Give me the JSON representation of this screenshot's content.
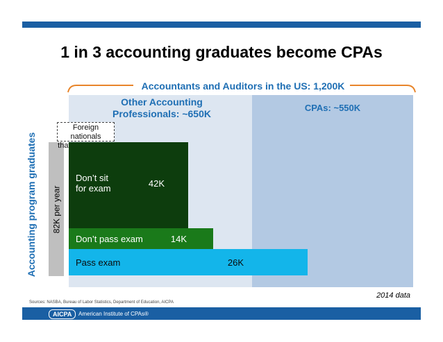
{
  "title": "1 in 3 accounting graduates become CPAs",
  "total_label": "Accountants and Auditors in the US: 1,200K",
  "other_label_line1": "Other Accounting",
  "other_label_line2": "Professionals: ~650K",
  "cpa_label": "CPAs: ~550K",
  "foreign_line1": "Foreign nationals",
  "foreign_line2": "that return home",
  "vertical_bar_label": "82K per year",
  "side_label": "Accounting program graduates",
  "year_note": "2014 data",
  "sources": "Sources: NASBA, Bureau of Labor Statistics, Department of Education, AICPA",
  "footer_logo": "AICPA",
  "footer_name": "American Institute of CPAs®",
  "colors": {
    "brand_blue": "#1a5fa3",
    "label_blue": "#1f6fb4",
    "other_bg": "#dde6f1",
    "cpa_bg": "#b3c9e3",
    "brace": "#e8852a"
  },
  "chart_data": {
    "type": "bar",
    "orientation": "horizontal",
    "unit": "K",
    "bars": [
      {
        "label_line1": "Don’t sit",
        "label_line2": "for exam",
        "value": 42,
        "display": "42K",
        "color": "#0d3d0d"
      },
      {
        "label_line1": "Don’t pass exam",
        "label_line2": "",
        "value": 14,
        "display": "14K",
        "color": "#1a7a1a"
      },
      {
        "label_line1": "Pass exam",
        "label_line2": "",
        "value": 26,
        "display": "26K",
        "color": "#13b5ea"
      }
    ],
    "total_graduates": 82,
    "groups": [
      {
        "name": "Other Accounting Professionals",
        "value": 650
      },
      {
        "name": "CPAs",
        "value": 550
      }
    ]
  }
}
